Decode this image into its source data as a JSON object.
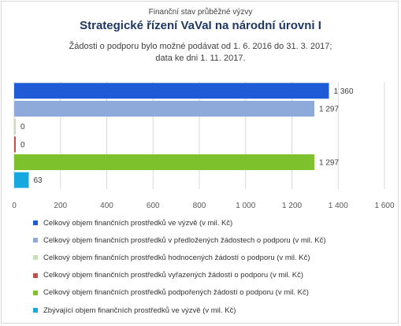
{
  "chart_data": {
    "type": "bar",
    "orientation": "horizontal",
    "supertitle": "Finanční stav průběžné výzvy",
    "title": "Strategické řízení VaVaI na národní úrovni I",
    "subtitle_lines": [
      "Žádosti o podporu bylo možné  podávat od 1. 6. 2016 do 31. 3. 2017;",
      "data ke dni 1. 11. 2017."
    ],
    "xlim": [
      0,
      1600
    ],
    "xticks": [
      0,
      200,
      400,
      600,
      800,
      1000,
      1200,
      1400,
      1600
    ],
    "xtick_labels": [
      "0",
      "200",
      "400",
      "600",
      "800",
      "1 000",
      "1 200",
      "1 400",
      "1 600"
    ],
    "grid": true,
    "legend_position": "bottom",
    "series": [
      {
        "name": "Celkový objem finančních prostředků ve výzvě (v mil. Kč)",
        "value": 1360,
        "label": "1 360",
        "color": "#1f5bd6"
      },
      {
        "name": "Celkový objem finančních prostředků v předložených žádostech o podporu (v mil. Kč)",
        "value": 1297,
        "label": "1 297",
        "color": "#8eaadb"
      },
      {
        "name": "Celkový objem finančních prostředků hodnocených žádostí o podporu (v mil. Kč)",
        "value": 0,
        "label": "0",
        "color": "#c5e0b4"
      },
      {
        "name": "Celkový objem finančních prostředků vyřazených žádostí o podporu (v mil. Kč)",
        "value": 0,
        "label": "0",
        "color": "#c0504d"
      },
      {
        "name": "Celkový objem finančních prostředků podpořených žádostí o podporu (v mil. Kč)",
        "value": 1297,
        "label": "1 297",
        "color": "#7dc22d"
      },
      {
        "name": "Zbývající objem finančních prostředků ve výzvě (v mil. Kč)",
        "value": 63,
        "label": "63",
        "color": "#18a8e0"
      }
    ]
  }
}
